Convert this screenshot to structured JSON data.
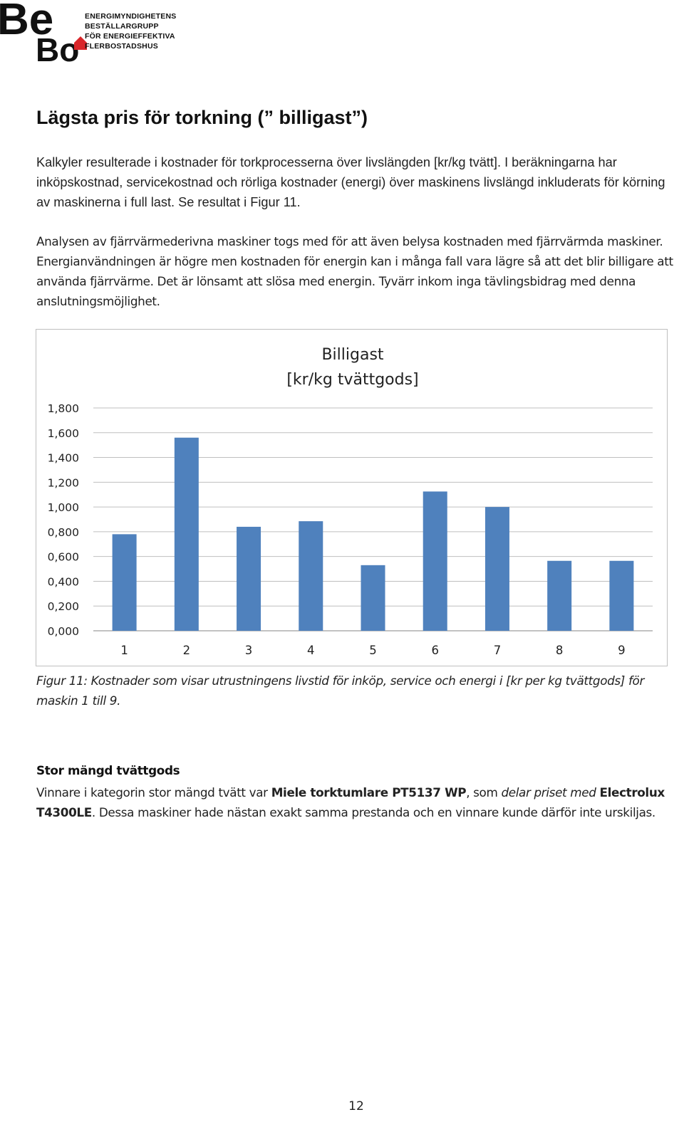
{
  "header": {
    "logo_text": "BeBo",
    "org_line1": "ENERGIMYNDIGHETENS BESTÄLLARGRUPP",
    "org_line2": "FÖR ENERGIEFFEKTIVA FLERBOSTADSHUS",
    "accent_color": "#d9262a"
  },
  "heading": "Lägsta pris för torkning (” billigast”)",
  "para1": "Kalkyler resulterade i kostnader för torkprocesserna över livslängden [kr/kg tvätt]. I beräkningarna har inköpskostnad, servicekostnad och rörliga kostnader (energi) över maskinens livslängd inkluderats för körning av maskinerna i full last. Se resultat i Figur 11.",
  "para2": "Analysen av fjärrvärmederivna maskiner togs med för att även belysa kostnaden med fjärrvärmda maskiner. Energianvändningen är högre men kostnaden för energin kan i många fall vara lägre så att det blir billigare att använda fjärrvärme. Det är lönsamt att slösa med energin. Tyvärr inkom inga tävlingsbidrag med denna anslutningsmöjlighet.",
  "chart_data": {
    "type": "bar",
    "title": "Billigast",
    "subtitle": "[kr/kg tvättgods]",
    "categories": [
      "1",
      "2",
      "3",
      "4",
      "5",
      "6",
      "7",
      "8",
      "9"
    ],
    "values": [
      0.78,
      1.56,
      0.84,
      0.885,
      0.53,
      1.125,
      1.0,
      0.565,
      0.565
    ],
    "y_ticks": [
      "0,000",
      "0,200",
      "0,400",
      "0,600",
      "0,800",
      "1,000",
      "1,200",
      "1,400",
      "1,600",
      "1,800"
    ],
    "ylim": [
      0,
      1.8
    ],
    "grid": true,
    "legend": "none",
    "bar_color": "#4f81bd"
  },
  "caption": "Figur 11: Kostnader som visar utrustningens livstid för inköp, service och energi i [kr per kg tvättgods] för maskin 1 till 9.",
  "section": {
    "heading": "Stor mängd tvättgods",
    "text_1": "Vinnare i kategorin stor mängd tvätt var ",
    "bold_1": "Miele torktumlare PT5137 WP",
    "text_2": ", som ",
    "italic_1": "delar priset med",
    "text_3": " ",
    "bold_2": "Electrolux T4300LE",
    "text_4": ". Dessa maskiner hade nästan exakt samma prestanda och en vinnare kunde därför inte urskiljas."
  },
  "page_number": "12"
}
